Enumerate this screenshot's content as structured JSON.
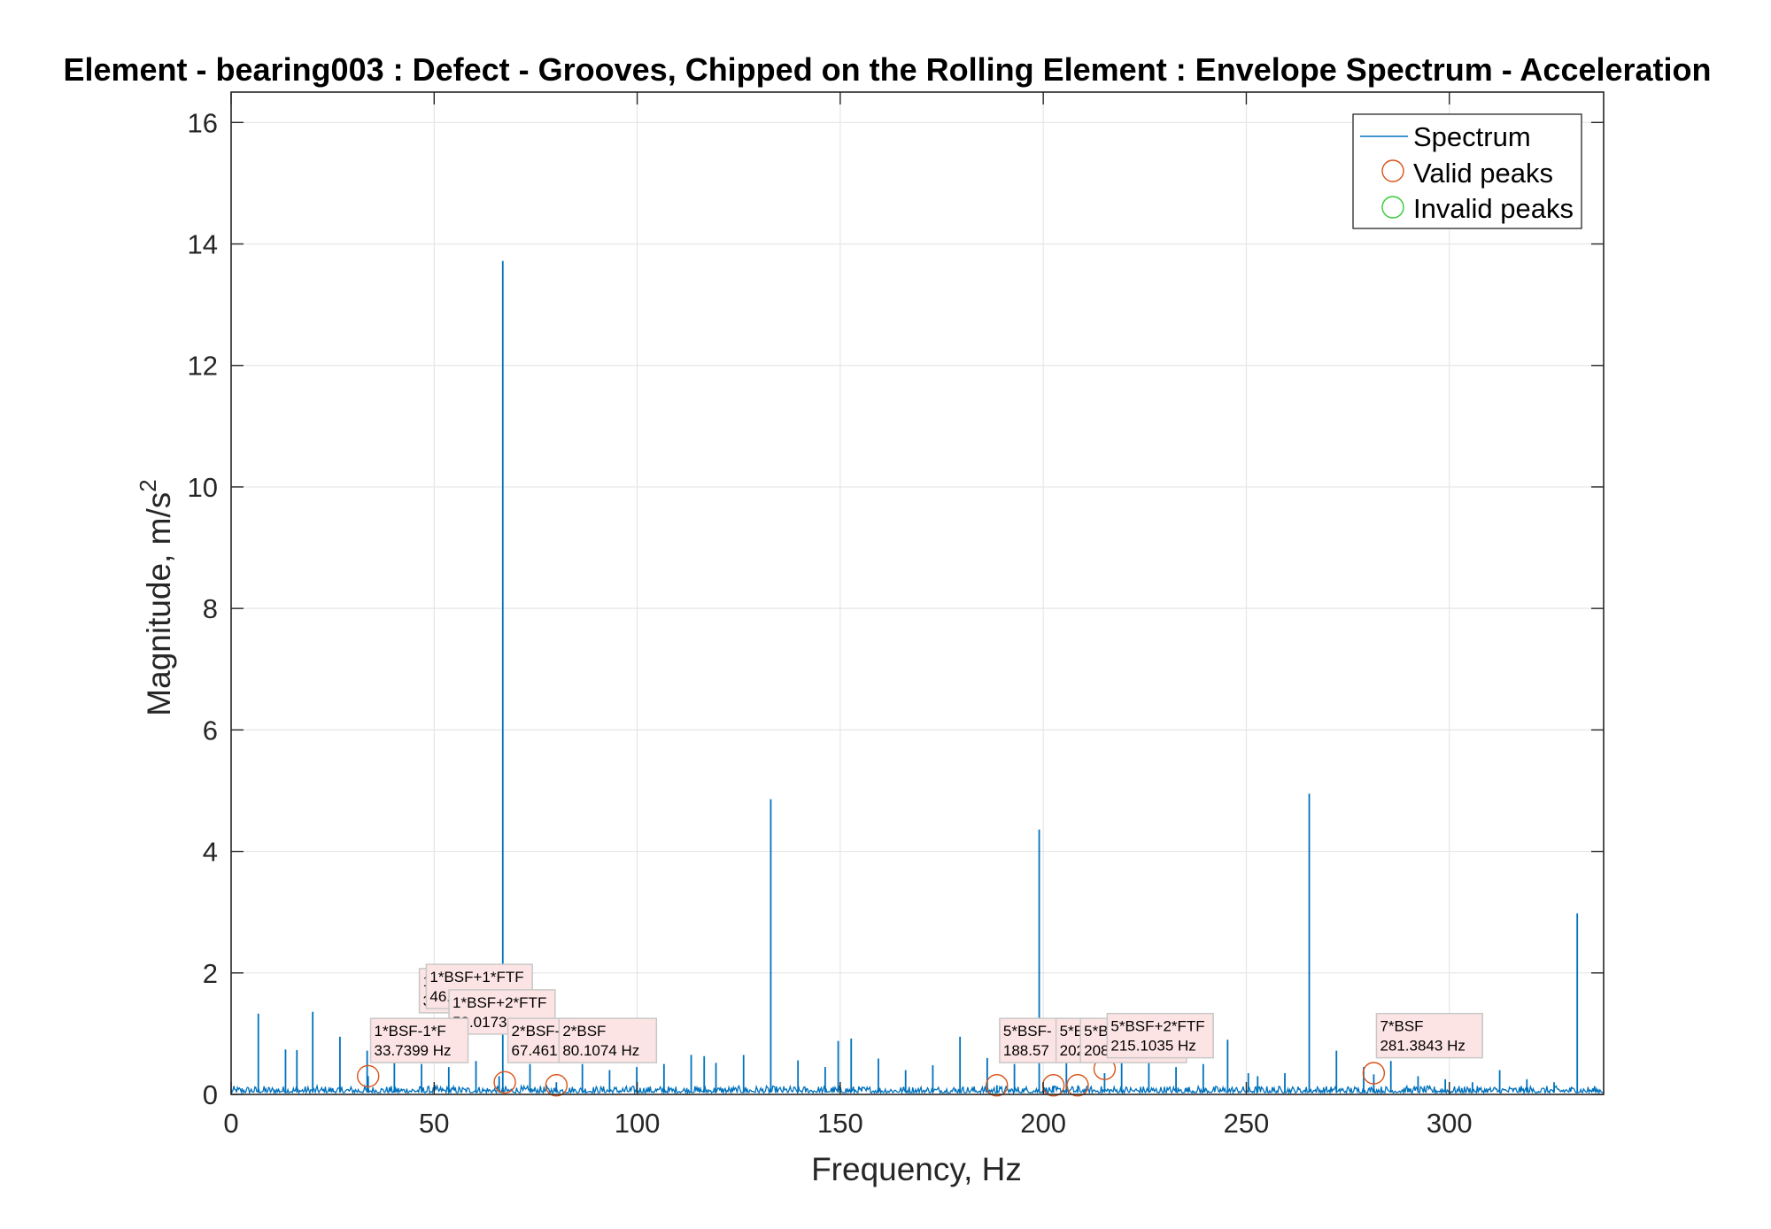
{
  "chart_data": {
    "type": "line",
    "title": "Element - bearing003 : Defect - Grooves, Chipped on the Rolling Element : Envelope Spectrum - Acceleration",
    "xlabel": "Frequency, Hz",
    "ylabel": "Magnitude, m/s",
    "ylabel_superscript": "2",
    "xlim": [
      0,
      338
    ],
    "ylim": [
      0,
      16.5
    ],
    "xticks": [
      0,
      50,
      100,
      150,
      200,
      250,
      300
    ],
    "yticks": [
      0,
      2,
      4,
      6,
      8,
      10,
      12,
      14,
      16
    ],
    "grid": true,
    "legend_position": "top-right",
    "legend": [
      {
        "label": "Spectrum",
        "marker": "line",
        "color": "#0072bd"
      },
      {
        "label": "Valid peaks",
        "marker": "circle",
        "color": "#d95319"
      },
      {
        "label": "Invalid peaks",
        "marker": "circle",
        "color": "#33cc33"
      }
    ],
    "series": [
      {
        "name": "Spectrum",
        "color": "#0072bd",
        "noise_floor": 0.07,
        "peaks": [
          {
            "x": 6.7,
            "y": 1.33
          },
          {
            "x": 13.4,
            "y": 0.74
          },
          {
            "x": 16.2,
            "y": 0.73
          },
          {
            "x": 20.1,
            "y": 1.36
          },
          {
            "x": 26.8,
            "y": 0.95
          },
          {
            "x": 33.5,
            "y": 0.72
          },
          {
            "x": 33.74,
            "y": 0.3
          },
          {
            "x": 40.2,
            "y": 0.6
          },
          {
            "x": 46.9,
            "y": 0.5
          },
          {
            "x": 53.6,
            "y": 0.45
          },
          {
            "x": 60.3,
            "y": 0.55
          },
          {
            "x": 66.0,
            "y": 0.3
          },
          {
            "x": 66.9,
            "y": 13.72
          },
          {
            "x": 73.6,
            "y": 0.5
          },
          {
            "x": 80.1,
            "y": 0.2
          },
          {
            "x": 86.5,
            "y": 0.5
          },
          {
            "x": 93.2,
            "y": 0.4
          },
          {
            "x": 99.9,
            "y": 0.45
          },
          {
            "x": 106.6,
            "y": 0.5
          },
          {
            "x": 113.3,
            "y": 0.65
          },
          {
            "x": 116.5,
            "y": 0.63
          },
          {
            "x": 119.4,
            "y": 0.52
          },
          {
            "x": 126.2,
            "y": 0.65
          },
          {
            "x": 132.9,
            "y": 4.86
          },
          {
            "x": 139.6,
            "y": 0.56
          },
          {
            "x": 146.3,
            "y": 0.45
          },
          {
            "x": 149.5,
            "y": 0.88
          },
          {
            "x": 152.7,
            "y": 0.92
          },
          {
            "x": 159.4,
            "y": 0.59
          },
          {
            "x": 166.1,
            "y": 0.4
          },
          {
            "x": 172.8,
            "y": 0.48
          },
          {
            "x": 179.5,
            "y": 0.95
          },
          {
            "x": 186.2,
            "y": 0.6
          },
          {
            "x": 188.6,
            "y": 0.15
          },
          {
            "x": 192.9,
            "y": 0.5
          },
          {
            "x": 199.0,
            "y": 4.36
          },
          {
            "x": 202.5,
            "y": 0.14
          },
          {
            "x": 205.7,
            "y": 0.55
          },
          {
            "x": 208.5,
            "y": 0.14
          },
          {
            "x": 215.1,
            "y": 0.35
          },
          {
            "x": 219.3,
            "y": 0.55
          },
          {
            "x": 226.0,
            "y": 0.6
          },
          {
            "x": 232.7,
            "y": 0.45
          },
          {
            "x": 239.4,
            "y": 0.5
          },
          {
            "x": 245.4,
            "y": 0.9
          },
          {
            "x": 250.5,
            "y": 0.35
          },
          {
            "x": 252.8,
            "y": 0.3
          },
          {
            "x": 259.5,
            "y": 0.35
          },
          {
            "x": 265.5,
            "y": 4.95
          },
          {
            "x": 272.2,
            "y": 0.72
          },
          {
            "x": 278.9,
            "y": 0.45
          },
          {
            "x": 281.4,
            "y": 0.33
          },
          {
            "x": 285.6,
            "y": 0.55
          },
          {
            "x": 292.3,
            "y": 0.3
          },
          {
            "x": 299.0,
            "y": 0.25
          },
          {
            "x": 305.7,
            "y": 0.2
          },
          {
            "x": 312.4,
            "y": 0.4
          },
          {
            "x": 319.1,
            "y": 0.25
          },
          {
            "x": 325.8,
            "y": 0.2
          },
          {
            "x": 331.5,
            "y": 2.98
          }
        ]
      }
    ],
    "valid_peaks": [
      {
        "x": 33.7399,
        "y": 0.3
      },
      {
        "x": 67.4,
        "y": 0.2
      },
      {
        "x": 80.1074,
        "y": 0.15
      },
      {
        "x": 188.57,
        "y": 0.15
      },
      {
        "x": 202.5,
        "y": 0.15
      },
      {
        "x": 208.47,
        "y": 0.15
      },
      {
        "x": 215.1035,
        "y": 0.42
      },
      {
        "x": 281.3843,
        "y": 0.35
      }
    ],
    "annotations": [
      {
        "line1": "1*B",
        "line2": "39.",
        "x": 39.8,
        "y": 0.2
      },
      {
        "line1": "1*BSF+1*FTF",
        "line2": "46.",
        "x": 46.3,
        "y": 0.2
      },
      {
        "line1": "1*BSF+2*FTF",
        "line2": "53.0173",
        "x": 53.0173,
        "y": 0.2
      },
      {
        "line1": "1*BSF-1*F",
        "line2": "33.7399 Hz",
        "x": 33.7399,
        "y": 0.3
      },
      {
        "line1": "2*BSF-",
        "line2": "67.461",
        "x": 67.461,
        "y": 0.2
      },
      {
        "line1": "2*BSF",
        "line2": "80.1074 Hz",
        "x": 80.1074,
        "y": 0.15
      },
      {
        "line1": "5*BSF-",
        "line2": "188.57",
        "x": 188.57,
        "y": 0.15
      },
      {
        "line1": "5*B",
        "line2": "202",
        "x": 202.5,
        "y": 0.15
      },
      {
        "line1": "5*B",
        "line2": "208.4718 Hz",
        "x": 208.4718,
        "y": 0.15
      },
      {
        "line1": "5*BSF+2*FTF",
        "line2": "215.1035 Hz",
        "x": 215.1035,
        "y": 0.42
      },
      {
        "line1": "7*BSF",
        "line2": "281.3843 Hz",
        "x": 281.3843,
        "y": 0.35
      }
    ]
  }
}
